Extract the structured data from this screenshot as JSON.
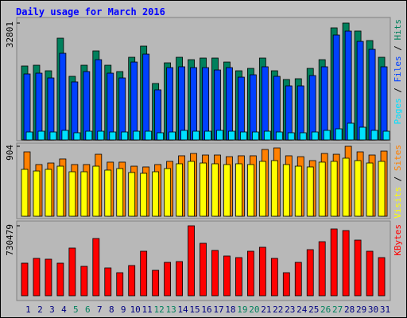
{
  "title": "Daily usage for March 2016",
  "separator": "/",
  "chart_data": [
    {
      "type": "bar",
      "ylim": [
        0,
        32801
      ],
      "yticks": [
        32801
      ],
      "series": [
        {
          "name": "Hits",
          "color": "#00805c",
          "values": [
            20750,
            20970,
            19410,
            28560,
            17850,
            20970,
            24990,
            20970,
            19190,
            23200,
            26330,
            15840,
            21640,
            23200,
            22530,
            22980,
            22980,
            21860,
            19410,
            20080,
            22980,
            19410,
            16960,
            17180,
            20080,
            22530,
            31460,
            32801,
            30570,
            27890,
            23200
          ]
        },
        {
          "name": "Files",
          "color": "#0040ff",
          "values": [
            18520,
            18740,
            17400,
            24320,
            16290,
            19190,
            22530,
            18740,
            17400,
            21860,
            24090,
            14060,
            20300,
            20530,
            20300,
            20300,
            19630,
            20300,
            17620,
            18290,
            20530,
            17850,
            15170,
            15170,
            18070,
            20530,
            29450,
            30560,
            27660,
            25430,
            20530
          ]
        },
        {
          "name": "Pages",
          "color": "#00e0ff",
          "values": [
            2230,
            2450,
            2230,
            2680,
            2010,
            2450,
            2450,
            2230,
            2230,
            2450,
            2450,
            2010,
            2230,
            2680,
            2450,
            2450,
            2680,
            2450,
            2230,
            2230,
            2450,
            2230,
            2010,
            2010,
            2230,
            2680,
            3120,
            4690,
            3570,
            2680,
            2450
          ]
        }
      ]
    },
    {
      "type": "bar",
      "ylim": [
        0,
        904
      ],
      "yticks": [
        904
      ],
      "series": [
        {
          "name": "Sites",
          "color": "#ff8000",
          "values": [
            832,
            668,
            688,
            740,
            668,
            668,
            801,
            699,
            699,
            647,
            637,
            668,
            709,
            781,
            811,
            791,
            791,
            770,
            781,
            781,
            863,
            883,
            781,
            770,
            719,
            811,
            801,
            904,
            832,
            791,
            842
          ]
        },
        {
          "name": "Visits",
          "color": "#ffff00",
          "values": [
            606,
            585,
            606,
            647,
            575,
            575,
            647,
            596,
            616,
            565,
            555,
            575,
            616,
            678,
            709,
            688,
            678,
            668,
            678,
            668,
            709,
            719,
            668,
            647,
            637,
            699,
            709,
            750,
            719,
            688,
            709
          ]
        }
      ]
    },
    {
      "type": "bar",
      "ylim": [
        0,
        730479
      ],
      "yticks": [
        730479
      ],
      "categories": [
        "1",
        "2",
        "3",
        "4",
        "5",
        "6",
        "7",
        "8",
        "9",
        "10",
        "11",
        "12",
        "13",
        "14",
        "15",
        "16",
        "17",
        "18",
        "19",
        "20",
        "21",
        "22",
        "23",
        "24",
        "25",
        "26",
        "27",
        "28",
        "29",
        "30",
        "31"
      ],
      "category_colors": [
        "#000080",
        "#000080",
        "#000080",
        "#000080",
        "#00805c",
        "#00805c",
        "#000080",
        "#000080",
        "#000080",
        "#000080",
        "#000080",
        "#00805c",
        "#00805c",
        "#000080",
        "#000080",
        "#000080",
        "#000080",
        "#000080",
        "#00805c",
        "#00805c",
        "#000080",
        "#000080",
        "#000080",
        "#000080",
        "#000080",
        "#00805c",
        "#00805c",
        "#000080",
        "#000080",
        "#000080",
        "#000080"
      ],
      "series": [
        {
          "name": "KBytes",
          "color": "#ff0000",
          "values": [
            340340,
            390150,
            381850,
            340340,
            498060,
            307140,
            597670,
            290540,
            240730,
            315440,
            464860,
            265630,
            348640,
            356940,
            730479,
            547870,
            473160,
            415050,
            398450,
            464860,
            506360,
            390150,
            240730,
            348640,
            481460,
            564470,
            697280,
            680680,
            581070,
            464860,
            398450
          ]
        }
      ]
    }
  ]
}
